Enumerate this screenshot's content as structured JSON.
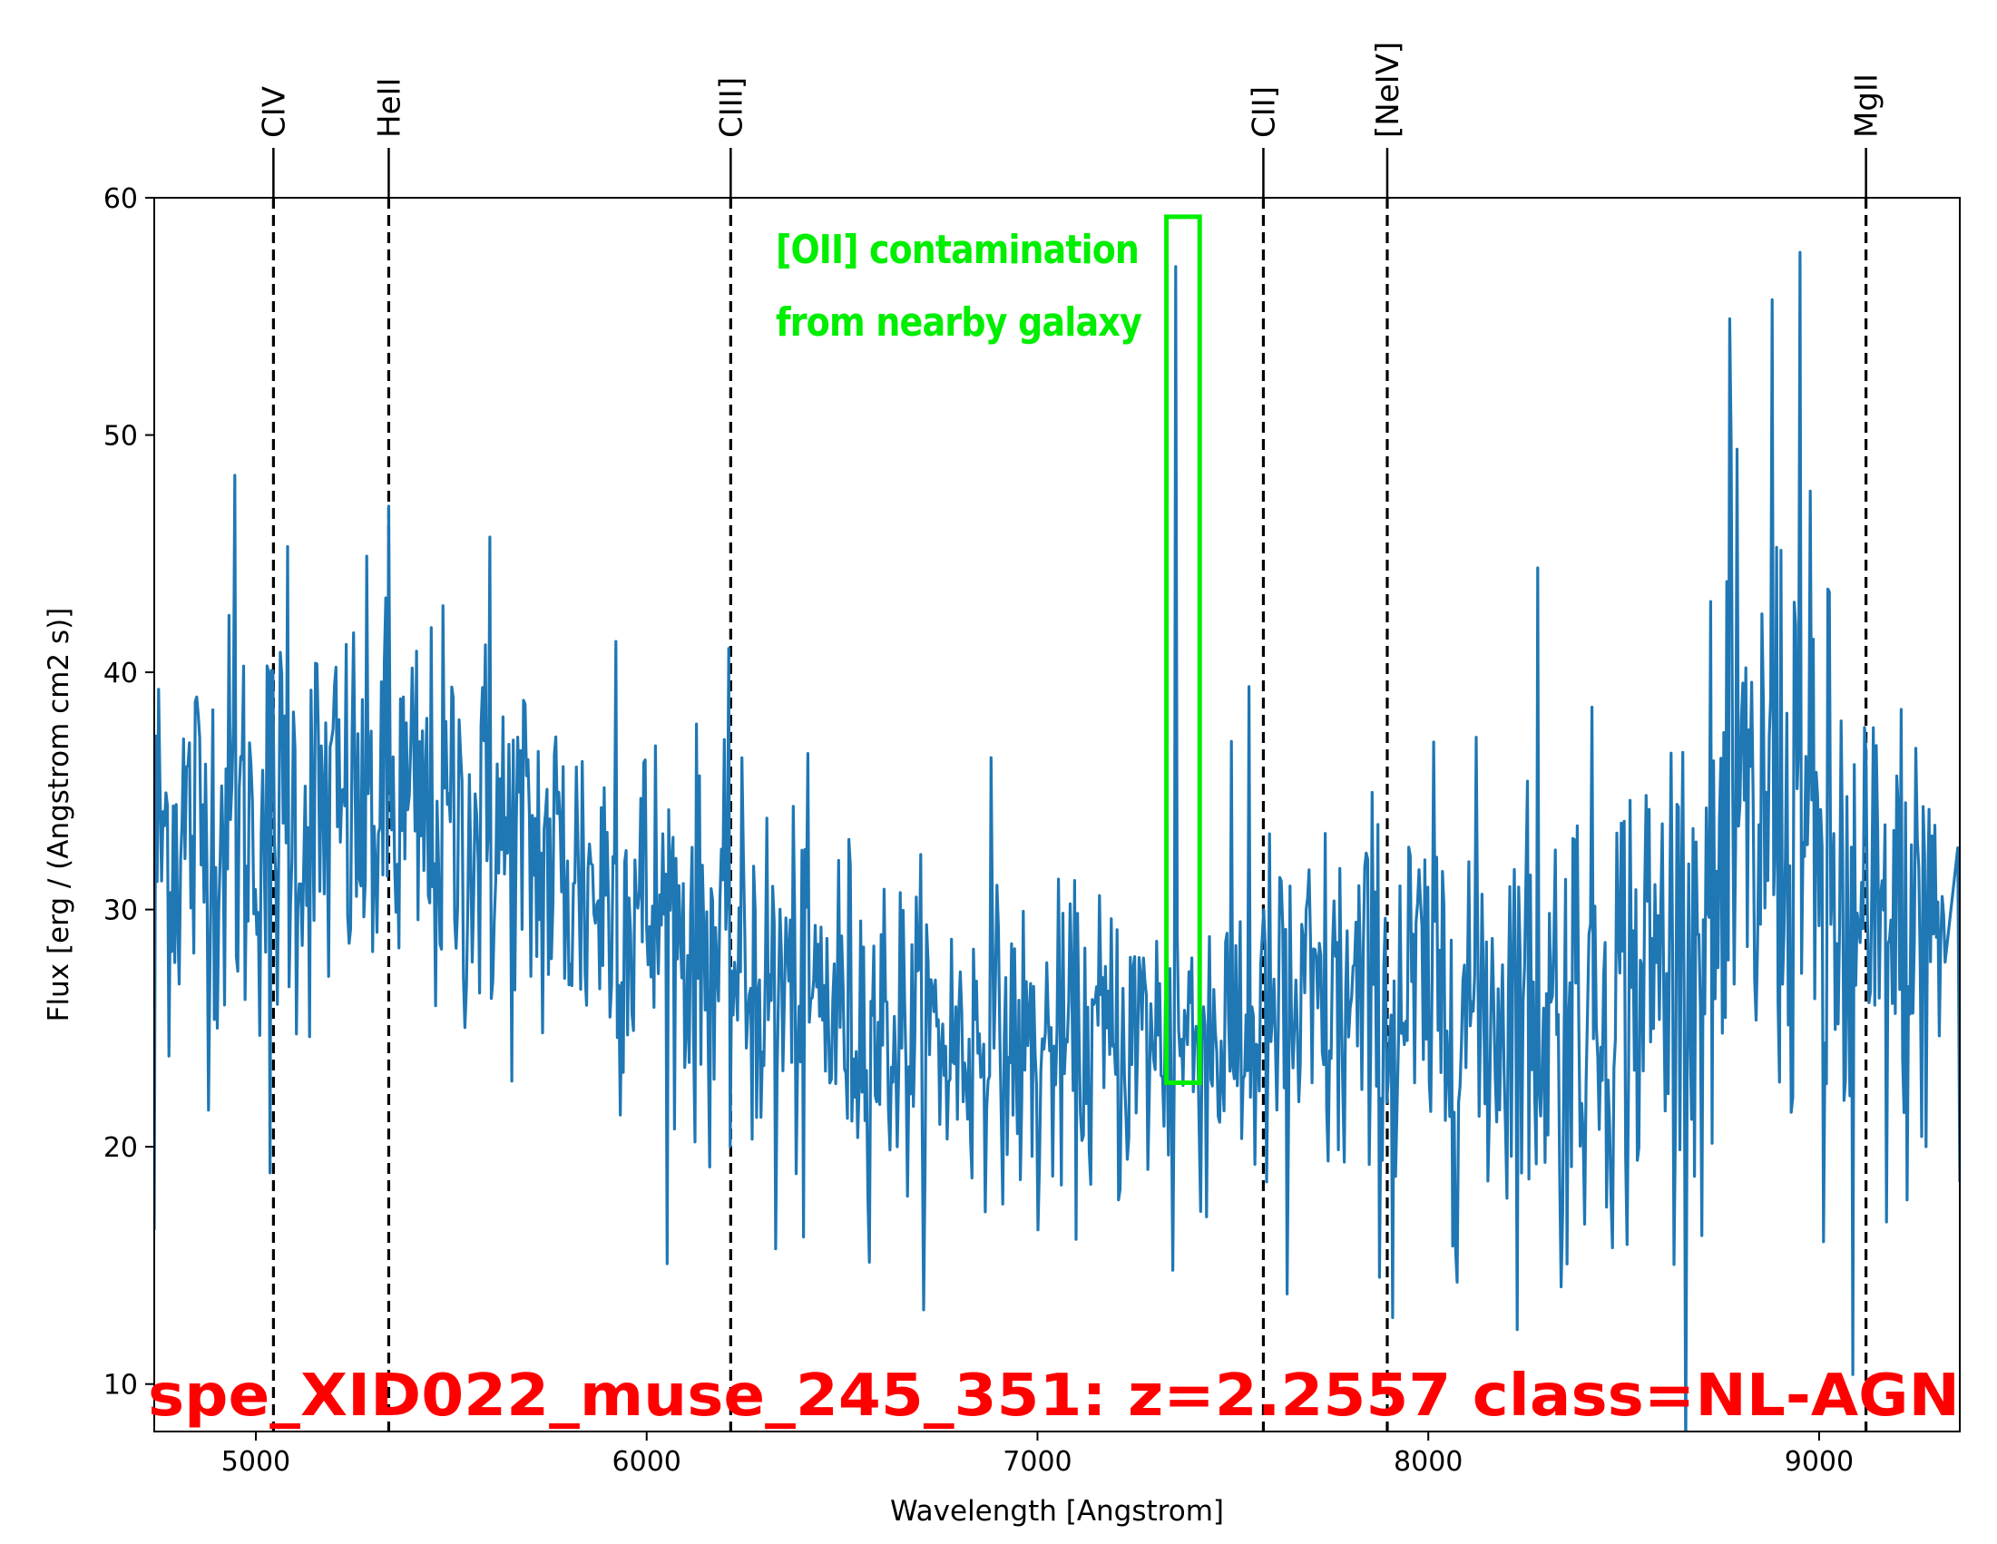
{
  "chart_data": {
    "type": "line",
    "title": "spe_XID022_muse_245_351: z=2.2557 class=NL-AGN",
    "xlabel": "Wavelength [Angstrom]",
    "ylabel": "Flux [erg / (Angstrom cm2 s)]",
    "xlim": [
      4740,
      9360
    ],
    "ylim": [
      8,
      60
    ],
    "xticks": [
      5000,
      6000,
      7000,
      8000,
      9000
    ],
    "xtick_labels": [
      "5000",
      "6000",
      "7000",
      "8000",
      "9000"
    ],
    "yticks": [
      10,
      20,
      30,
      40,
      50,
      60
    ],
    "ytick_labels": [
      "10",
      "20",
      "30",
      "40",
      "50",
      "60"
    ],
    "grid": false,
    "legend": "none",
    "series_color": "#1f77b4",
    "emission_lines": [
      {
        "label": "CIV",
        "wavelength": 5045
      },
      {
        "label": "HeII",
        "wavelength": 5340
      },
      {
        "label": "CIII]",
        "wavelength": 6215
      },
      {
        "label": "CII]",
        "wavelength": 7578
      },
      {
        "label": "[NeIV]",
        "wavelength": 7895
      },
      {
        "label": "MgII",
        "wavelength": 9120
      }
    ],
    "annotation": {
      "lines": [
        "[OII] contamination",
        "from nearby galaxy"
      ],
      "color": "#00ee00",
      "box_x": [
        7330,
        7415
      ],
      "box_y": [
        22.7,
        59.2
      ]
    },
    "spectrum": {
      "x_start": 4740,
      "x_end": 9325,
      "continuum_anchors": [
        {
          "x": 4740,
          "y": 33
        },
        {
          "x": 5000,
          "y": 33.5
        },
        {
          "x": 5300,
          "y": 34
        },
        {
          "x": 5600,
          "y": 33
        },
        {
          "x": 6000,
          "y": 30
        },
        {
          "x": 6300,
          "y": 27
        },
        {
          "x": 6700,
          "y": 24.5
        },
        {
          "x": 7000,
          "y": 24
        },
        {
          "x": 7300,
          "y": 24.5
        },
        {
          "x": 7600,
          "y": 25
        },
        {
          "x": 7900,
          "y": 26
        },
        {
          "x": 8200,
          "y": 26
        },
        {
          "x": 8500,
          "y": 26.5
        },
        {
          "x": 8700,
          "y": 29
        },
        {
          "x": 8900,
          "y": 34
        },
        {
          "x": 9100,
          "y": 28
        },
        {
          "x": 9325,
          "y": 29
        }
      ],
      "noise_anchors": [
        {
          "x": 4740,
          "y": 4.5
        },
        {
          "x": 6000,
          "y": 4.2
        },
        {
          "x": 7000,
          "y": 3.0
        },
        {
          "x": 8000,
          "y": 4.5
        },
        {
          "x": 8700,
          "y": 5.5
        },
        {
          "x": 8950,
          "y": 7.0
        },
        {
          "x": 9325,
          "y": 4.5
        }
      ],
      "features": [
        {
          "x": 4945,
          "y": 48.3
        },
        {
          "x": 5035,
          "y": 18.9
        },
        {
          "x": 5080,
          "y": 45.3
        },
        {
          "x": 5340,
          "y": 47.0
        },
        {
          "x": 5600,
          "y": 45.7
        },
        {
          "x": 5920,
          "y": 41.3
        },
        {
          "x": 6210,
          "y": 41.0
        },
        {
          "x": 6330,
          "y": 15.7
        },
        {
          "x": 6400,
          "y": 16.2
        },
        {
          "x": 6880,
          "y": 36.4
        },
        {
          "x": 7000,
          "y": 16.5
        },
        {
          "x": 7355,
          "y": 57.1
        },
        {
          "x": 7345,
          "y": 14.8
        },
        {
          "x": 7540,
          "y": 39.4
        },
        {
          "x": 7640,
          "y": 13.8
        },
        {
          "x": 7910,
          "y": 12.8
        },
        {
          "x": 8280,
          "y": 44.4
        },
        {
          "x": 8340,
          "y": 14.1
        },
        {
          "x": 8770,
          "y": 54.9
        },
        {
          "x": 8790,
          "y": 49.4
        },
        {
          "x": 8880,
          "y": 55.7
        },
        {
          "x": 8950,
          "y": 57.7
        },
        {
          "x": 9010,
          "y": 16.0
        },
        {
          "x": 9085,
          "y": 10.4
        },
        {
          "x": 9290,
          "y": 33.1
        }
      ]
    }
  }
}
